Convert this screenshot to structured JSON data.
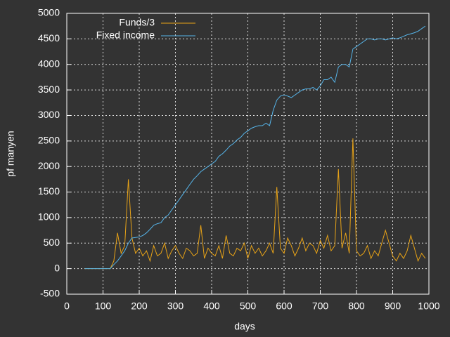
{
  "chart_data": {
    "type": "line",
    "xlabel": "days",
    "ylabel": "pf manyen",
    "x": [
      50,
      60,
      70,
      80,
      90,
      100,
      110,
      120,
      130,
      140,
      150,
      160,
      170,
      180,
      190,
      200,
      210,
      220,
      230,
      240,
      250,
      260,
      270,
      280,
      290,
      300,
      310,
      320,
      330,
      340,
      350,
      360,
      370,
      380,
      390,
      400,
      410,
      420,
      430,
      440,
      450,
      460,
      470,
      480,
      490,
      500,
      510,
      520,
      530,
      540,
      550,
      560,
      570,
      580,
      590,
      600,
      610,
      620,
      630,
      640,
      650,
      660,
      670,
      680,
      690,
      700,
      710,
      720,
      730,
      740,
      750,
      760,
      770,
      780,
      790,
      800,
      810,
      820,
      830,
      840,
      850,
      860,
      870,
      880,
      890,
      900,
      910,
      920,
      930,
      940,
      950,
      960,
      970,
      980,
      990
    ],
    "series": [
      {
        "name": "Funds/3",
        "color": "#e8a317",
        "values": [
          0,
          0,
          0,
          0,
          0,
          0,
          0,
          0,
          150,
          700,
          300,
          450,
          1750,
          600,
          300,
          400,
          250,
          350,
          150,
          450,
          250,
          300,
          500,
          200,
          350,
          450,
          300,
          200,
          400,
          350,
          250,
          300,
          850,
          200,
          400,
          300,
          250,
          450,
          200,
          650,
          300,
          250,
          400,
          350,
          500,
          200,
          450,
          300,
          400,
          250,
          350,
          500,
          300,
          1600,
          400,
          300,
          600,
          450,
          250,
          400,
          600,
          350,
          500,
          450,
          300,
          550,
          400,
          650,
          350,
          450,
          1950,
          400,
          700,
          300,
          2550,
          350,
          250,
          300,
          450,
          200,
          350,
          250,
          500,
          750,
          500,
          250,
          150,
          300,
          200,
          350,
          650,
          400,
          150,
          300,
          200
        ]
      },
      {
        "name": "Fixed income",
        "color": "#56b4e9",
        "values": [
          0,
          0,
          0,
          0,
          0,
          0,
          0,
          0,
          80,
          150,
          250,
          350,
          500,
          600,
          610,
          620,
          650,
          700,
          770,
          850,
          880,
          900,
          1000,
          1050,
          1150,
          1250,
          1350,
          1450,
          1550,
          1650,
          1750,
          1820,
          1900,
          1950,
          2000,
          2050,
          2100,
          2200,
          2250,
          2320,
          2400,
          2450,
          2520,
          2570,
          2650,
          2700,
          2750,
          2780,
          2800,
          2800,
          2850,
          2800,
          3100,
          3300,
          3380,
          3400,
          3380,
          3350,
          3400,
          3450,
          3500,
          3520,
          3520,
          3550,
          3500,
          3580,
          3700,
          3700,
          3750,
          3650,
          3950,
          4000,
          4000,
          3950,
          4300,
          4350,
          4400,
          4450,
          4500,
          4500,
          4480,
          4500,
          4500,
          4480,
          4500,
          4520,
          4500,
          4520,
          4550,
          4580,
          4600,
          4620,
          4650,
          4700,
          4750
        ]
      }
    ],
    "xlim": [
      0,
      1000
    ],
    "xticks": [
      0,
      100,
      200,
      300,
      400,
      500,
      600,
      700,
      800,
      900,
      1000
    ],
    "ylim": [
      -500,
      5000
    ],
    "yticks": [
      -500,
      0,
      500,
      1000,
      1500,
      2000,
      2500,
      3000,
      3500,
      4000,
      4500,
      5000
    ],
    "grid": true,
    "legend": "top-left"
  }
}
